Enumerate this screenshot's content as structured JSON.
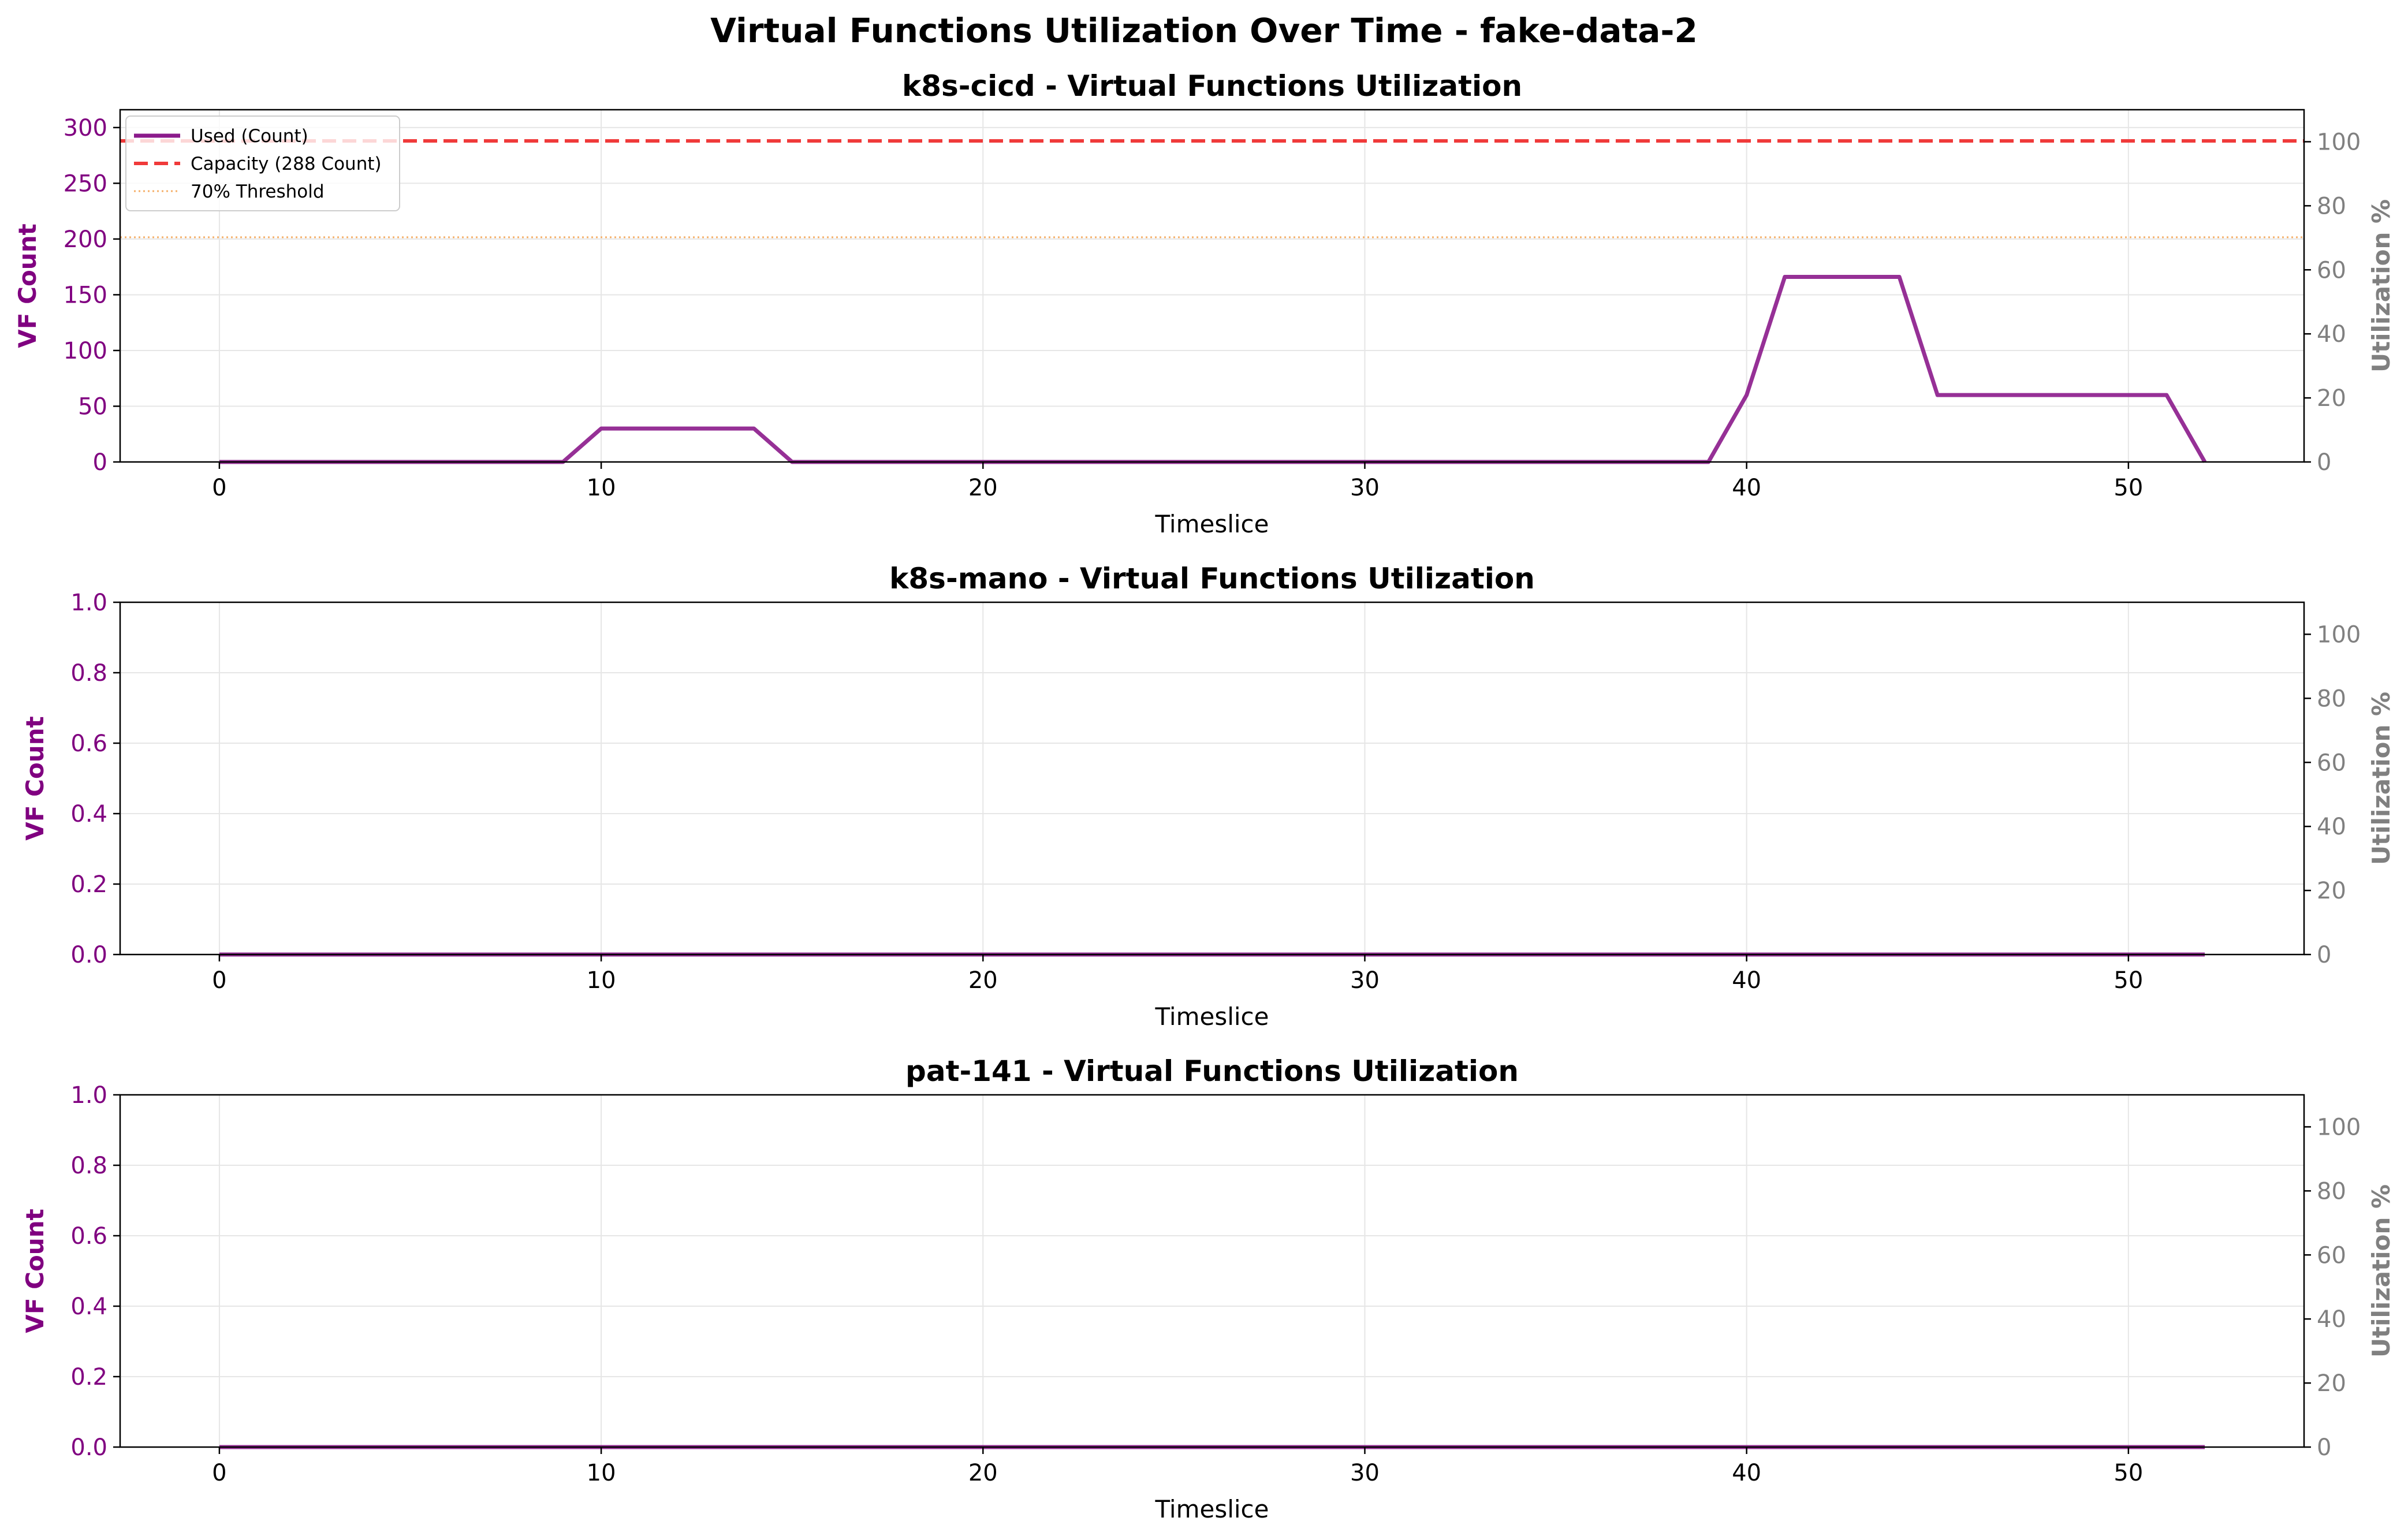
{
  "figure_title": "Virtual Functions Utilization Over Time - fake-data-2",
  "colors": {
    "used": "#8B1A8B",
    "capacity": "#F03A3A",
    "threshold": "#F5B06A",
    "left_axis": "#800080",
    "right_axis": "#808080",
    "grid": "#e6e6e6"
  },
  "chart_data": [
    {
      "type": "line",
      "title": "k8s-cicd - Virtual Functions Utilization",
      "xlabel": "Timeslice",
      "ylabel": "VF Count",
      "ylabel_right": "Utilization %",
      "xlim": [
        -2.6,
        54.6
      ],
      "ylim": [
        0,
        316
      ],
      "ylim_right": [
        0,
        110
      ],
      "xticks": [
        0,
        10,
        20,
        30,
        40,
        50
      ],
      "yticks": [
        0,
        50,
        100,
        150,
        200,
        250,
        300
      ],
      "yticks_right": [
        0,
        20,
        40,
        60,
        80,
        100
      ],
      "grid": true,
      "legend": {
        "placement": "upper-left",
        "entries": [
          "Used (Count)",
          "Capacity (288 Count)",
          "70% Threshold"
        ]
      },
      "series": [
        {
          "name": "Used (Count)",
          "style": "solid",
          "x": [
            0,
            1,
            2,
            3,
            4,
            5,
            6,
            7,
            8,
            9,
            10,
            11,
            12,
            13,
            14,
            15,
            16,
            17,
            18,
            19,
            20,
            21,
            22,
            23,
            24,
            25,
            26,
            27,
            28,
            29,
            30,
            31,
            32,
            33,
            34,
            35,
            36,
            37,
            38,
            39,
            40,
            41,
            42,
            43,
            44,
            45,
            46,
            47,
            48,
            49,
            50,
            51,
            52
          ],
          "values": [
            0,
            0,
            0,
            0,
            0,
            0,
            0,
            0,
            0,
            0,
            30,
            30,
            30,
            30,
            30,
            0,
            0,
            0,
            0,
            0,
            0,
            0,
            0,
            0,
            0,
            0,
            0,
            0,
            0,
            0,
            0,
            0,
            0,
            0,
            0,
            0,
            0,
            0,
            0,
            0,
            60,
            166,
            166,
            166,
            166,
            60,
            60,
            60,
            60,
            60,
            60,
            60,
            0
          ]
        },
        {
          "name": "Capacity (288 Count)",
          "style": "dashed",
          "y": 288
        },
        {
          "name": "70% Threshold",
          "style": "dotted",
          "y": 201.6
        }
      ]
    },
    {
      "type": "line",
      "title": "k8s-mano - Virtual Functions Utilization",
      "xlabel": "Timeslice",
      "ylabel": "VF Count",
      "ylabel_right": "Utilization %",
      "xlim": [
        -2.6,
        54.6
      ],
      "ylim": [
        0,
        1
      ],
      "ylim_right": [
        0,
        110
      ],
      "xticks": [
        0,
        10,
        20,
        30,
        40,
        50
      ],
      "yticks": [
        0.0,
        0.2,
        0.4,
        0.6,
        0.8,
        1.0
      ],
      "yticks_right": [
        0,
        20,
        40,
        60,
        80,
        100
      ],
      "grid": true,
      "series": [
        {
          "name": "",
          "style": "solid",
          "x": [
            0,
            1,
            2,
            3,
            4,
            5,
            6,
            7,
            8,
            9,
            10,
            11,
            12,
            13,
            14,
            15,
            16,
            17,
            18,
            19,
            20,
            21,
            22,
            23,
            24,
            25,
            26,
            27,
            28,
            29,
            30,
            31,
            32,
            33,
            34,
            35,
            36,
            37,
            38,
            39,
            40,
            41,
            42,
            43,
            44,
            45,
            46,
            47,
            48,
            49,
            50,
            51,
            52
          ],
          "values": [
            0,
            0,
            0,
            0,
            0,
            0,
            0,
            0,
            0,
            0,
            0,
            0,
            0,
            0,
            0,
            0,
            0,
            0,
            0,
            0,
            0,
            0,
            0,
            0,
            0,
            0,
            0,
            0,
            0,
            0,
            0,
            0,
            0,
            0,
            0,
            0,
            0,
            0,
            0,
            0,
            0,
            0,
            0,
            0,
            0,
            0,
            0,
            0,
            0,
            0,
            0,
            0,
            0
          ]
        }
      ]
    },
    {
      "type": "line",
      "title": "pat-141 - Virtual Functions Utilization",
      "xlabel": "Timeslice",
      "ylabel": "VF Count",
      "ylabel_right": "Utilization %",
      "xlim": [
        -2.6,
        54.6
      ],
      "ylim": [
        0,
        1
      ],
      "ylim_right": [
        0,
        110
      ],
      "xticks": [
        0,
        10,
        20,
        30,
        40,
        50
      ],
      "yticks": [
        0.0,
        0.2,
        0.4,
        0.6,
        0.8,
        1.0
      ],
      "yticks_right": [
        0,
        20,
        40,
        60,
        80,
        100
      ],
      "grid": true,
      "series": [
        {
          "name": "",
          "style": "solid",
          "x": [
            0,
            1,
            2,
            3,
            4,
            5,
            6,
            7,
            8,
            9,
            10,
            11,
            12,
            13,
            14,
            15,
            16,
            17,
            18,
            19,
            20,
            21,
            22,
            23,
            24,
            25,
            26,
            27,
            28,
            29,
            30,
            31,
            32,
            33,
            34,
            35,
            36,
            37,
            38,
            39,
            40,
            41,
            42,
            43,
            44,
            45,
            46,
            47,
            48,
            49,
            50,
            51,
            52
          ],
          "values": [
            0,
            0,
            0,
            0,
            0,
            0,
            0,
            0,
            0,
            0,
            0,
            0,
            0,
            0,
            0,
            0,
            0,
            0,
            0,
            0,
            0,
            0,
            0,
            0,
            0,
            0,
            0,
            0,
            0,
            0,
            0,
            0,
            0,
            0,
            0,
            0,
            0,
            0,
            0,
            0,
            0,
            0,
            0,
            0,
            0,
            0,
            0,
            0,
            0,
            0,
            0,
            0,
            0
          ]
        }
      ]
    }
  ]
}
